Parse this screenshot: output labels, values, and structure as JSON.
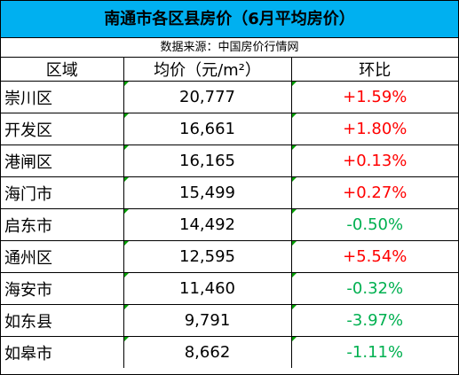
{
  "title": "南通市各区县房价（6月平均房价）",
  "source": "数据来源：中国房价行情网",
  "headers": {
    "region": "区域",
    "price": "均价（元/m²）",
    "change": "环比"
  },
  "rows": [
    {
      "region": "崇川区",
      "price": "20,777",
      "change": "+1.59%",
      "trend": "up"
    },
    {
      "region": "开发区",
      "price": "16,661",
      "change": "+1.80%",
      "trend": "up"
    },
    {
      "region": "港闸区",
      "price": "16,165",
      "change": "+0.13%",
      "trend": "up"
    },
    {
      "region": "海门市",
      "price": "15,499",
      "change": "+0.27%",
      "trend": "up"
    },
    {
      "region": "启东市",
      "price": "14,492",
      "change": "-0.50%",
      "trend": "down"
    },
    {
      "region": "通州区",
      "price": "12,595",
      "change": "+5.54%",
      "trend": "up"
    },
    {
      "region": "海安市",
      "price": "11,460",
      "change": "-0.32%",
      "trend": "down"
    },
    {
      "region": "如东县",
      "price": "9,791",
      "change": "-3.97%",
      "trend": "down"
    },
    {
      "region": "如皋市",
      "price": "8,662",
      "change": "-1.11%",
      "trend": "down"
    }
  ],
  "colors": {
    "title_bg": "#00b0f0",
    "up": "#ff0000",
    "down": "#00b050",
    "cell_marker": "#00a000"
  }
}
